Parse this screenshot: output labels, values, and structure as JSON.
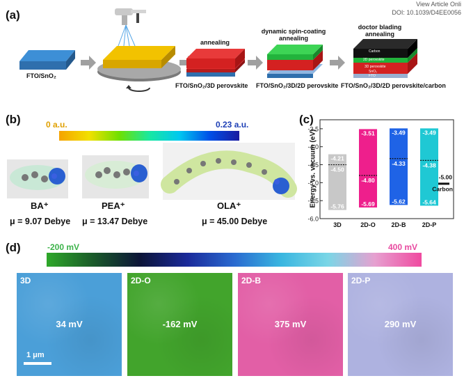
{
  "header": {
    "view_article": "View Article Onli",
    "doi": "DOI: 10.1039/D4EE0056"
  },
  "panel_a": {
    "label": "(a)",
    "steps": {
      "s1_caption": "FTO/SnO₂",
      "s3_title": "annealing",
      "s3_caption": "FTO/SnO₂/3D perovskite",
      "s4_title": "dynamic spin-coating annealing",
      "s4_caption": "FTO/SnO₂/3D/2D perovskite",
      "s5_title": "doctor blading annealing",
      "s5_caption": "FTO/SnO₂/3D/2D perovskite/carbon",
      "s5_layers": [
        "Carbon",
        "2D perovskite",
        "3D perovskite",
        "SnO₂",
        "FTO"
      ]
    }
  },
  "panel_b": {
    "label": "(b)",
    "scale_min": "0 a.u.",
    "scale_max": "0.23 a.u.",
    "molecules": [
      {
        "name": "BA⁺",
        "dipole": "μ = 9.07 Debye"
      },
      {
        "name": "PEA⁺",
        "dipole": "μ = 13.47 Debye"
      },
      {
        "name": "OLA⁺",
        "dipole": "μ = 45.00 Debye"
      }
    ]
  },
  "panel_c": {
    "label": "(c)",
    "chart_data": {
      "type": "bar",
      "ylabel": "Energy vs. vacuum (eV)",
      "ylim": [
        -6.0,
        -3.25
      ],
      "yticks": [
        "-3.5",
        "-4.0",
        "-4.5",
        "-5.0",
        "-5.5",
        "-6.0"
      ],
      "categories": [
        "3D",
        "2D-O",
        "2D-B",
        "2D-P"
      ],
      "series": [
        {
          "top": -4.21,
          "bottom": -5.76,
          "fermi": -4.5,
          "color": "#c8c8c8",
          "labels": [
            "-4.21",
            "-4.50",
            "-5.76"
          ]
        },
        {
          "top": -3.51,
          "bottom": -5.69,
          "fermi": -4.8,
          "color": "#ee1f8c",
          "labels": [
            "-3.51",
            "-4.80",
            "-5.69"
          ]
        },
        {
          "top": -3.49,
          "bottom": -5.62,
          "fermi": -4.33,
          "color": "#1f63e6",
          "labels": [
            "-3.49",
            "-4.33",
            "-5.62"
          ]
        },
        {
          "top": -3.49,
          "bottom": -5.64,
          "fermi": -4.38,
          "color": "#1fc8d4",
          "labels": [
            "-3.49",
            "-4.38",
            "-5.64"
          ]
        }
      ],
      "carbon": {
        "value": -5.0,
        "value_label": "-5.00",
        "name": "Carbon"
      }
    }
  },
  "panel_d": {
    "label": "(d)",
    "scale_min": "-200 mV",
    "scale_max": "400 mV",
    "scale_bar": "1 μm",
    "maps": [
      {
        "name": "3D",
        "value": "34 mV",
        "color": "#4b9fd8"
      },
      {
        "name": "2D-O",
        "value": "-162 mV",
        "color": "#42a42c"
      },
      {
        "name": "2D-B",
        "value": "375 mV",
        "color": "#e25fa6"
      },
      {
        "name": "2D-P",
        "value": "290 mV",
        "color": "#aeb2e0"
      }
    ]
  }
}
